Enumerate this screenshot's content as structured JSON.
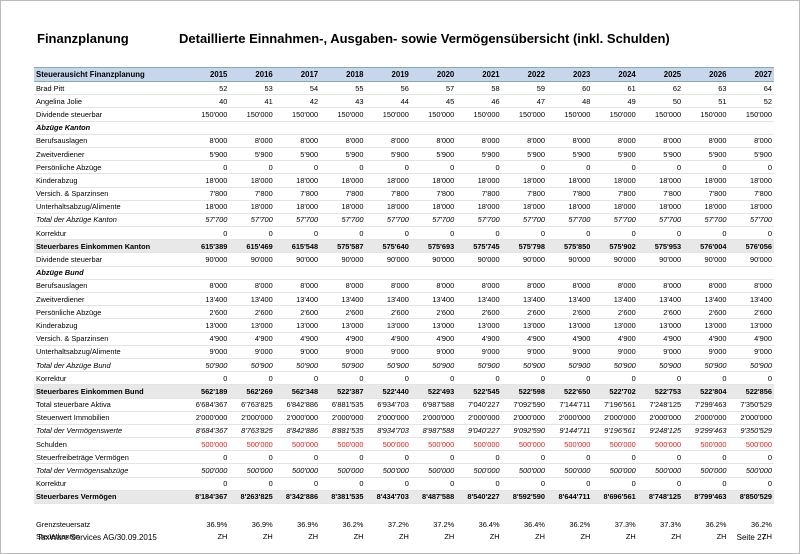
{
  "header": {
    "left": "Finanzplanung",
    "title": "Detaillierte Einnahmen-, Ausgaben- sowie Vermögensübersicht (inkl. Schulden)"
  },
  "table": {
    "columns": [
      "Steuerausicht Finanzplanung",
      "2015",
      "2016",
      "2017",
      "2018",
      "2019",
      "2020",
      "2021",
      "2022",
      "2023",
      "2024",
      "2025",
      "2026",
      "2027"
    ],
    "rows": [
      {
        "label": "Brad Pitt",
        "values": [
          "52",
          "53",
          "54",
          "55",
          "56",
          "57",
          "58",
          "59",
          "60",
          "61",
          "62",
          "63",
          "64"
        ]
      },
      {
        "label": "Angelina Jolie",
        "values": [
          "40",
          "41",
          "42",
          "43",
          "44",
          "45",
          "46",
          "47",
          "48",
          "49",
          "50",
          "51",
          "52"
        ]
      },
      {
        "label": "Dividende steuerbar",
        "values": [
          "150'000",
          "150'000",
          "150'000",
          "150'000",
          "150'000",
          "150'000",
          "150'000",
          "150'000",
          "150'000",
          "150'000",
          "150'000",
          "150'000",
          "150'000"
        ]
      },
      {
        "label": "Abzüge Kanton"
      },
      {
        "label": "Berufsauslagen",
        "values": [
          "8'000",
          "8'000",
          "8'000",
          "8'000",
          "8'000",
          "8'000",
          "8'000",
          "8'000",
          "8'000",
          "8'000",
          "8'000",
          "8'000",
          "8'000"
        ]
      },
      {
        "label": "Zweitverdiener",
        "values": [
          "5'900",
          "5'900",
          "5'900",
          "5'900",
          "5'900",
          "5'900",
          "5'900",
          "5'900",
          "5'900",
          "5'900",
          "5'900",
          "5'900",
          "5'900"
        ]
      },
      {
        "label": "Persönliche Abzüge",
        "values": [
          "0",
          "0",
          "0",
          "0",
          "0",
          "0",
          "0",
          "0",
          "0",
          "0",
          "0",
          "0",
          "0"
        ]
      },
      {
        "label": "Kinderabzug",
        "values": [
          "18'000",
          "18'000",
          "18'000",
          "18'000",
          "18'000",
          "18'000",
          "18'000",
          "18'000",
          "18'000",
          "18'000",
          "18'000",
          "18'000",
          "18'000"
        ]
      },
      {
        "label": "Versich. & Sparzinsen",
        "values": [
          "7'800",
          "7'800",
          "7'800",
          "7'800",
          "7'800",
          "7'800",
          "7'800",
          "7'800",
          "7'800",
          "7'800",
          "7'800",
          "7'800",
          "7'800"
        ]
      },
      {
        "label": "Unterhaltsabzug/Alimente",
        "values": [
          "18'000",
          "18'000",
          "18'000",
          "18'000",
          "18'000",
          "18'000",
          "18'000",
          "18'000",
          "18'000",
          "18'000",
          "18'000",
          "18'000",
          "18'000"
        ]
      },
      {
        "label": "Total der Abzüge Kanton",
        "values": [
          "57'700",
          "57'700",
          "57'700",
          "57'700",
          "57'700",
          "57'700",
          "57'700",
          "57'700",
          "57'700",
          "57'700",
          "57'700",
          "57'700",
          "57'700"
        ]
      },
      {
        "label": "Korrektur",
        "values": [
          "0",
          "0",
          "0",
          "0",
          "0",
          "0",
          "0",
          "0",
          "0",
          "0",
          "0",
          "0",
          "0"
        ]
      },
      {
        "label": "Steuerbares Einkommen Kanton",
        "values": [
          "615'389",
          "615'469",
          "615'548",
          "575'587",
          "575'640",
          "575'693",
          "575'745",
          "575'798",
          "575'850",
          "575'902",
          "575'953",
          "576'004",
          "576'056"
        ]
      },
      {
        "label": "Dividende steuerbar",
        "values": [
          "90'000",
          "90'000",
          "90'000",
          "90'000",
          "90'000",
          "90'000",
          "90'000",
          "90'000",
          "90'000",
          "90'000",
          "90'000",
          "90'000",
          "90'000"
        ]
      },
      {
        "label": "Abzüge Bund"
      },
      {
        "label": "Berufsauslagen",
        "values": [
          "8'000",
          "8'000",
          "8'000",
          "8'000",
          "8'000",
          "8'000",
          "8'000",
          "8'000",
          "8'000",
          "8'000",
          "8'000",
          "8'000",
          "8'000"
        ]
      },
      {
        "label": "Zweitverdiener",
        "values": [
          "13'400",
          "13'400",
          "13'400",
          "13'400",
          "13'400",
          "13'400",
          "13'400",
          "13'400",
          "13'400",
          "13'400",
          "13'400",
          "13'400",
          "13'400"
        ]
      },
      {
        "label": "Persönliche Abzüge",
        "values": [
          "2'600",
          "2'600",
          "2'600",
          "2'600",
          "2'600",
          "2'600",
          "2'600",
          "2'600",
          "2'600",
          "2'600",
          "2'600",
          "2'600",
          "2'600"
        ]
      },
      {
        "label": "Kinderabzug",
        "values": [
          "13'000",
          "13'000",
          "13'000",
          "13'000",
          "13'000",
          "13'000",
          "13'000",
          "13'000",
          "13'000",
          "13'000",
          "13'000",
          "13'000",
          "13'000"
        ]
      },
      {
        "label": "Versich. & Sparzinsen",
        "values": [
          "4'900",
          "4'900",
          "4'900",
          "4'900",
          "4'900",
          "4'900",
          "4'900",
          "4'900",
          "4'900",
          "4'900",
          "4'900",
          "4'900",
          "4'900"
        ]
      },
      {
        "label": "Unterhaltsabzug/Alimente",
        "values": [
          "9'000",
          "9'000",
          "9'000",
          "9'000",
          "9'000",
          "9'000",
          "9'000",
          "9'000",
          "9'000",
          "9'000",
          "9'000",
          "9'000",
          "9'000"
        ]
      },
      {
        "label": "Total der Abzüge Bund",
        "values": [
          "50'900",
          "50'900",
          "50'900",
          "50'900",
          "50'900",
          "50'900",
          "50'900",
          "50'900",
          "50'900",
          "50'900",
          "50'900",
          "50'900",
          "50'900"
        ]
      },
      {
        "label": "Korrektur",
        "values": [
          "0",
          "0",
          "0",
          "0",
          "0",
          "0",
          "0",
          "0",
          "0",
          "0",
          "0",
          "0",
          "0"
        ]
      },
      {
        "label": "Steuerbares Einkommen Bund",
        "values": [
          "562'189",
          "562'269",
          "562'348",
          "522'387",
          "522'440",
          "522'493",
          "522'545",
          "522'598",
          "522'650",
          "522'702",
          "522'753",
          "522'804",
          "522'856"
        ]
      },
      {
        "label": "Total steuerbare Aktiva",
        "values": [
          "6'684'367",
          "6'763'825",
          "6'842'886",
          "6'881'535",
          "6'934'703",
          "6'987'588",
          "7'040'227",
          "7'092'590",
          "7'144'711",
          "7'196'561",
          "7'248'125",
          "7'299'463",
          "7'350'529"
        ]
      },
      {
        "label": "Steuerwert Immobilien",
        "values": [
          "2'000'000",
          "2'000'000",
          "2'000'000",
          "2'000'000",
          "2'000'000",
          "2'000'000",
          "2'000'000",
          "2'000'000",
          "2'000'000",
          "2'000'000",
          "2'000'000",
          "2'000'000",
          "2'000'000"
        ]
      },
      {
        "label": "Total der Vermögenswerte",
        "values": [
          "8'684'367",
          "8'763'825",
          "8'842'886",
          "8'881'535",
          "8'934'703",
          "8'987'588",
          "9'040'227",
          "9'092'590",
          "9'144'711",
          "9'196'561",
          "9'248'125",
          "9'299'463",
          "9'350'529"
        ]
      },
      {
        "label": "Schulden",
        "values": [
          "500'000",
          "500'000",
          "500'000",
          "500'000",
          "500'000",
          "500'000",
          "500'000",
          "500'000",
          "500'000",
          "500'000",
          "500'000",
          "500'000",
          "500'000"
        ]
      },
      {
        "label": "Steuerfreibeträge Vermögen",
        "values": [
          "0",
          "0",
          "0",
          "0",
          "0",
          "0",
          "0",
          "0",
          "0",
          "0",
          "0",
          "0",
          "0"
        ]
      },
      {
        "label": "Total der Vermögensabzüge",
        "values": [
          "500'000",
          "500'000",
          "500'000",
          "500'000",
          "500'000",
          "500'000",
          "500'000",
          "500'000",
          "500'000",
          "500'000",
          "500'000",
          "500'000",
          "500'000"
        ]
      },
      {
        "label": "Korrektur",
        "values": [
          "0",
          "0",
          "0",
          "0",
          "0",
          "0",
          "0",
          "0",
          "0",
          "0",
          "0",
          "0",
          "0"
        ]
      },
      {
        "label": "Steuerbares Vermögen",
        "values": [
          "8'184'367",
          "8'263'825",
          "8'342'886",
          "8'381'535",
          "8'434'703",
          "8'487'588",
          "8'540'227",
          "8'592'590",
          "8'644'711",
          "8'696'561",
          "8'748'125",
          "8'799'463",
          "8'850'529"
        ]
      },
      {
        "label": "Grenzsteuersatz",
        "values": [
          "36.9%",
          "36.9%",
          "36.9%",
          "36.2%",
          "37.2%",
          "37.2%",
          "36.4%",
          "36.4%",
          "36.2%",
          "37.3%",
          "37.3%",
          "36.2%",
          "36.2%"
        ]
      },
      {
        "label": "Steuerkanton",
        "values": [
          "ZH",
          "ZH",
          "ZH",
          "ZH",
          "ZH",
          "ZH",
          "ZH",
          "ZH",
          "ZH",
          "ZH",
          "ZH",
          "ZH",
          "ZH"
        ]
      }
    ]
  },
  "footer": {
    "left": "TaxWare Services AG/30.09.2015",
    "right": "Seite 27"
  }
}
